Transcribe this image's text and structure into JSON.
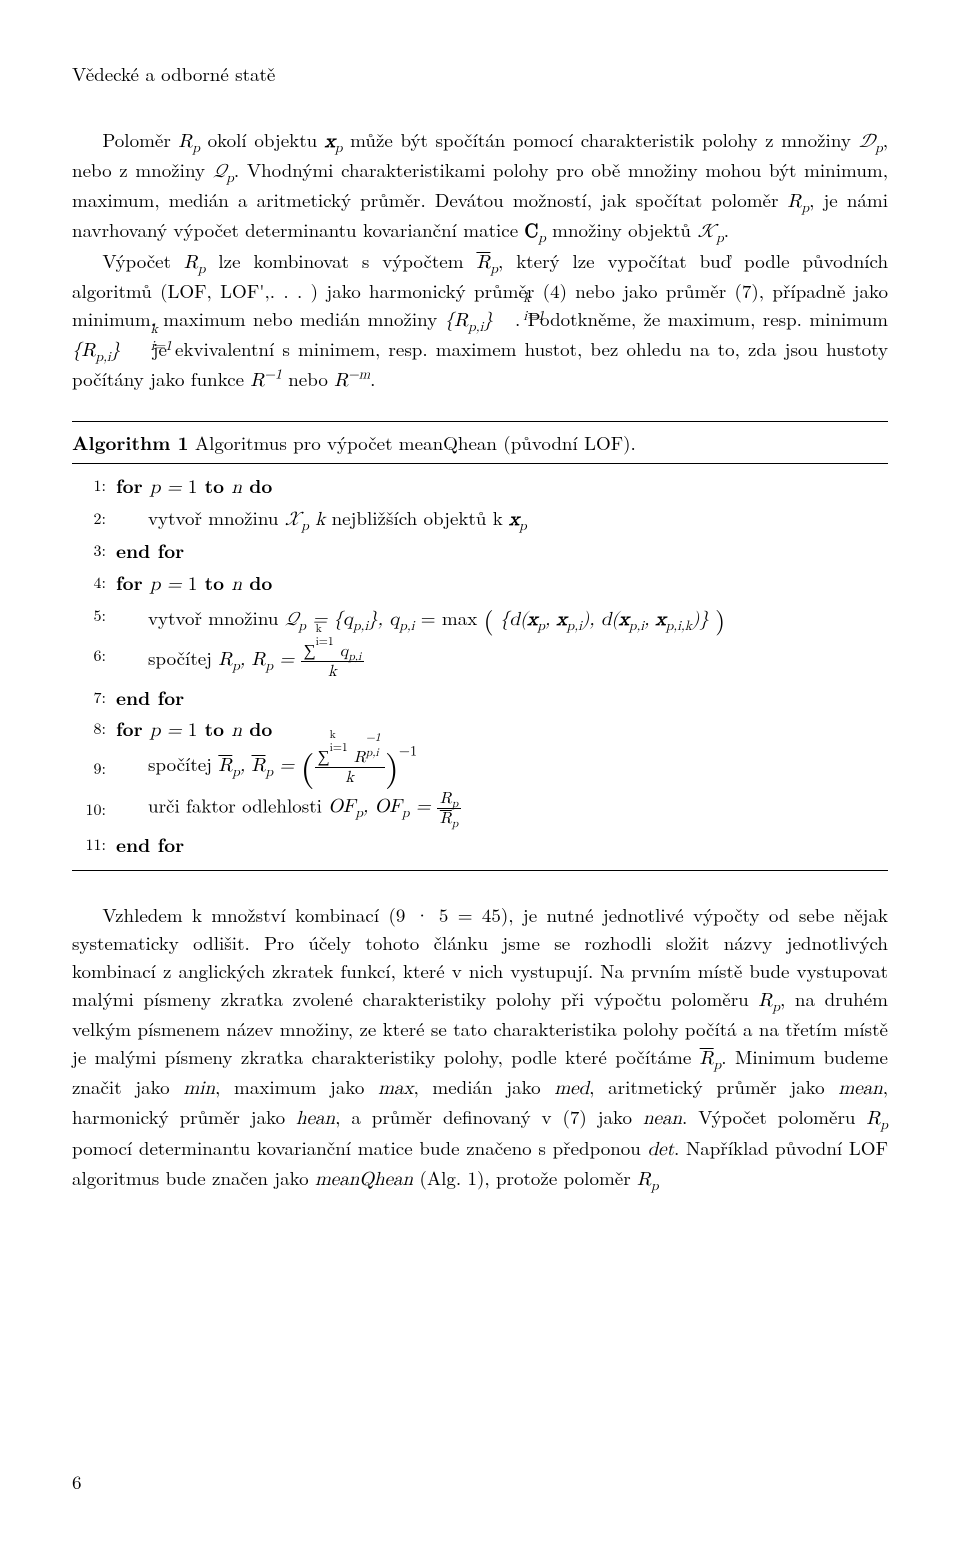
{
  "header": "Vědecké a odborné statě",
  "para1_a": "Poloměr ",
  "para1_b": " okolí objektu ",
  "para1_c": " může být spočítán pomocí charakteristik polohy z množiny ",
  "para1_d": ", nebo z množiny ",
  "para1_e": ". Vhodnými charakteristikami polohy pro obě množiny mohou být minimum, maximum, medián a aritmetický průměr. Devátou možností, jak spočítat poloměr ",
  "para1_f": ", je námi navrhovaný výpočet determinantu kovarianční matice ",
  "para1_g": " množiny objektů ",
  "para1_h": ".",
  "para2_a": "Výpočet ",
  "para2_b": " lze kombinovat s výpočtem ",
  "para2_c": ", který lze vypočítat buď podle původních algoritmů (LOF, LOF',. . . ) jako harmonický průměr (4) nebo jako průměr (7), případně jako minimum, maximum nebo medián množiny ",
  "para2_d": ". Podotkněme, že maximum, resp. minimum ",
  "para2_e": " je ekvivalentní s minimem, resp. maximem hustot, bez ohledu na to, zda jsou hustoty počítány jako funkce ",
  "para2_f": " nebo ",
  "para2_g": ".",
  "alg_label": "Algorithm 1",
  "alg_caption": " Algoritmus pro výpočet meanQhean (původní LOF).",
  "alg_lines": {
    "l1_num": "1:",
    "l1_a": "for ",
    "l1_b": " to ",
    "l1_c": " do",
    "l2_num": "2:",
    "l2_a": "vytvoř množinu ",
    "l2_b": " nejbližších objektů k ",
    "l3_num": "3:",
    "l3": "end for",
    "l4_num": "4:",
    "l4_a": "for ",
    "l4_b": " to ",
    "l4_c": " do",
    "l5_num": "5:",
    "l5_a": "vytvoř množinu ",
    "l5_b": " = max",
    "l6_num": "6:",
    "l6_a": "spočítej ",
    "l7_num": "7:",
    "l7": "end for",
    "l8_num": "8:",
    "l8_a": "for ",
    "l8_b": " to ",
    "l8_c": " do",
    "l9_num": "9:",
    "l9_a": "spočítej ",
    "l10_num": "10:",
    "l10_a": "urči faktor odlehlosti ",
    "l11_num": "11:",
    "l11": "end for"
  },
  "para3_a": "Vzhledem k množství kombinací (9 · 5 = 45), je nutné jednotlivé výpočty od sebe nějak systematicky odlišit. Pro účely tohoto článku jsme se rozhodli složit názvy jednotlivých kombinací z anglických zkratek funkcí, které v nich vystupují. Na prvním místě bude vystupovat malými písmeny zkratka zvolené charakteristiky polohy při výpočtu poloměru ",
  "para3_b": ", na druhém velkým písmenem název množiny, ze které se tato charakteristika polohy počítá a na třetím místě je malými písmeny zkratka charakteristiky polohy, podle které počítáme ",
  "para3_c": ". Minimum budeme značit jako ",
  "para3_d": ", maximum jako ",
  "para3_e": ", medián jako ",
  "para3_f": ", aritmetický průměr jako ",
  "para3_g": ", harmonický průměr jako ",
  "para3_h": ", a průměr definovaný v (7) jako ",
  "para3_i": ". Výpočet poloměru ",
  "para3_j": " pomocí determinantu kovarianční matice bude značeno s předponou ",
  "para3_k": ". Například původní LOF algoritmus bude značen jako ",
  "para3_l": " (Alg. 1), protože poloměr ",
  "label_min": "min",
  "label_max": "max",
  "label_med": "med",
  "label_mean": "mean",
  "label_hean": "hean",
  "label_nean": "nean",
  "label_det": "det",
  "label_meanQhean": "meanQhean",
  "pagenum": "6"
}
